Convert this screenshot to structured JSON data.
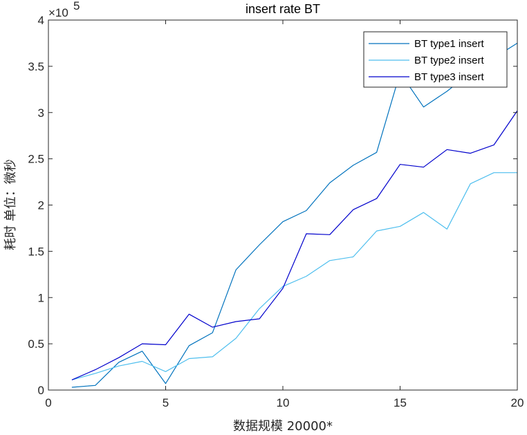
{
  "chart_data": {
    "type": "line",
    "title": "insert rate  BT",
    "xlabel": "数据规模 20000*",
    "ylabel": "耗时 单位：微秒",
    "y_exponent_label": "×10",
    "y_exponent_power": "5",
    "xlim": [
      0,
      20
    ],
    "ylim": [
      0,
      400000
    ],
    "x_ticks": [
      0,
      5,
      10,
      15,
      20
    ],
    "x_tick_labels": [
      "0",
      "5",
      "10",
      "15",
      "20"
    ],
    "y_ticks": [
      0,
      50000,
      100000,
      150000,
      200000,
      250000,
      300000,
      350000,
      400000
    ],
    "y_tick_labels": [
      "0",
      "0.5",
      "1",
      "1.5",
      "2",
      "2.5",
      "3",
      "3.5",
      "4"
    ],
    "grid": false,
    "legend_position": "top-right",
    "x": [
      1,
      2,
      3,
      4,
      5,
      6,
      7,
      8,
      9,
      10,
      11,
      12,
      13,
      14,
      15,
      16,
      17,
      18,
      19,
      20
    ],
    "series": [
      {
        "name": "BT type1 insert",
        "color": "#0072BD",
        "values": [
          3000,
          5000,
          30000,
          42000,
          7000,
          48000,
          62000,
          130000,
          157000,
          182000,
          194000,
          224000,
          243000,
          257000,
          343000,
          306000,
          323000,
          343000,
          359000,
          375000
        ]
      },
      {
        "name": "BT type2 insert",
        "color": "#4DBEEE",
        "values": [
          11000,
          18000,
          26000,
          31000,
          20000,
          34000,
          36000,
          56000,
          88000,
          112000,
          123000,
          140000,
          144000,
          172000,
          177000,
          192000,
          174000,
          223000,
          235000,
          235000
        ]
      },
      {
        "name": "BT type3 insert",
        "color": "#0000CC",
        "values": [
          11000,
          22000,
          35000,
          50000,
          49000,
          82000,
          68000,
          74000,
          77000,
          110000,
          169000,
          168000,
          195000,
          207000,
          244000,
          241000,
          260000,
          256000,
          265000,
          302000
        ]
      }
    ]
  }
}
